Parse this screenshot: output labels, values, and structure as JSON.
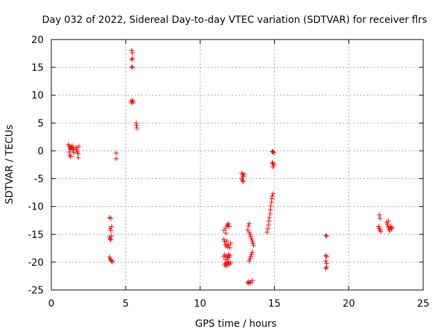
{
  "chart_data": {
    "type": "scatter",
    "title": "Day 032 of 2022, Sidereal Day-to-day VTEC variation (SDTVAR) for receiver flrs",
    "xlabel": "GPS time / hours",
    "ylabel": "SDTVAR / TECUs",
    "xlim": [
      0,
      25
    ],
    "ylim": [
      -25,
      20
    ],
    "xticks": [
      0,
      5,
      10,
      15,
      20,
      25
    ],
    "yticks": [
      -25,
      -20,
      -15,
      -10,
      -5,
      0,
      5,
      10,
      15,
      20
    ],
    "marker": "+",
    "color": "#ff0000",
    "grid": true,
    "series": [
      {
        "name": "SDTVAR",
        "points": [
          [
            1.15,
            1.1
          ],
          [
            1.2,
            0.8
          ],
          [
            1.25,
            0.5
          ],
          [
            1.3,
            0.3
          ],
          [
            1.35,
            0.7
          ],
          [
            1.2,
            -0.2
          ],
          [
            1.25,
            -0.8
          ],
          [
            1.3,
            -1.0
          ],
          [
            1.4,
            0.9
          ],
          [
            1.45,
            0.2
          ],
          [
            1.5,
            -0.3
          ],
          [
            1.5,
            0.4
          ],
          [
            1.65,
            0.6
          ],
          [
            1.7,
            0.2
          ],
          [
            1.75,
            -0.2
          ],
          [
            1.8,
            -0.5
          ],
          [
            1.85,
            0.8
          ],
          [
            1.8,
            -1.2
          ],
          [
            4.35,
            -0.4
          ],
          [
            4.35,
            -1.4
          ],
          [
            3.9,
            -12.0
          ],
          [
            4.0,
            -12.1
          ],
          [
            3.95,
            -13.9
          ],
          [
            4.0,
            -14.3
          ],
          [
            4.05,
            -13.6
          ],
          [
            3.9,
            -15.5
          ],
          [
            3.95,
            -15.8
          ],
          [
            4.05,
            -15.3
          ],
          [
            4.0,
            -16.0
          ],
          [
            3.9,
            -19.1
          ],
          [
            3.95,
            -19.4
          ],
          [
            4.0,
            -19.6
          ],
          [
            4.05,
            -19.8
          ],
          [
            4.1,
            -19.9
          ],
          [
            5.4,
            18.1
          ],
          [
            5.45,
            17.6
          ],
          [
            5.4,
            16.4
          ],
          [
            5.45,
            16.6
          ],
          [
            5.4,
            15.1
          ],
          [
            5.45,
            15.0
          ],
          [
            5.35,
            8.9
          ],
          [
            5.4,
            8.6
          ],
          [
            5.45,
            9.1
          ],
          [
            5.5,
            8.8
          ],
          [
            5.7,
            5.0
          ],
          [
            5.72,
            4.6
          ],
          [
            5.75,
            4.1
          ],
          [
            11.6,
            -14.3
          ],
          [
            11.7,
            -13.9
          ],
          [
            11.75,
            -14.8
          ],
          [
            11.8,
            -13.5
          ],
          [
            11.85,
            -13.3
          ],
          [
            11.9,
            -13.1
          ],
          [
            11.95,
            -13.6
          ],
          [
            11.6,
            -15.9
          ],
          [
            11.65,
            -16.3
          ],
          [
            11.7,
            -16.8
          ],
          [
            11.75,
            -17.1
          ],
          [
            11.8,
            -16.2
          ],
          [
            11.85,
            -17.3
          ],
          [
            11.9,
            -16.9
          ],
          [
            12.0,
            -17.4
          ],
          [
            12.05,
            -16.6
          ],
          [
            11.6,
            -19.0
          ],
          [
            11.65,
            -18.7
          ],
          [
            11.7,
            -19.5
          ],
          [
            11.8,
            -18.9
          ],
          [
            11.85,
            -19.2
          ],
          [
            11.9,
            -18.6
          ],
          [
            11.95,
            -19.1
          ],
          [
            12.0,
            -18.8
          ],
          [
            11.65,
            -20.5
          ],
          [
            11.7,
            -20.2
          ],
          [
            11.75,
            -20.7
          ],
          [
            11.8,
            -20.0
          ],
          [
            11.85,
            -20.4
          ],
          [
            11.9,
            -19.9
          ],
          [
            11.95,
            -20.3
          ],
          [
            12.05,
            -20.1
          ],
          [
            12.8,
            -4.0
          ],
          [
            12.85,
            -4.3
          ],
          [
            12.9,
            -4.6
          ],
          [
            12.8,
            -5.0
          ],
          [
            12.85,
            -5.3
          ],
          [
            12.9,
            -5.5
          ],
          [
            12.95,
            -4.2
          ],
          [
            13.2,
            -14.2
          ],
          [
            13.25,
            -13.5
          ],
          [
            13.3,
            -13.1
          ],
          [
            13.3,
            -14.6
          ],
          [
            13.35,
            -15.0
          ],
          [
            13.4,
            -15.4
          ],
          [
            13.45,
            -15.8
          ],
          [
            13.5,
            -16.2
          ],
          [
            13.55,
            -16.6
          ],
          [
            13.6,
            -17.0
          ],
          [
            13.3,
            -19.8
          ],
          [
            13.35,
            -19.4
          ],
          [
            13.4,
            -19.0
          ],
          [
            13.45,
            -18.6
          ],
          [
            13.5,
            -18.2
          ],
          [
            13.2,
            -23.6
          ],
          [
            13.25,
            -23.8
          ],
          [
            13.3,
            -23.5
          ],
          [
            13.4,
            -23.7
          ],
          [
            13.5,
            -23.3
          ],
          [
            14.5,
            -14.6
          ],
          [
            14.55,
            -14.0
          ],
          [
            14.6,
            -13.3
          ],
          [
            14.62,
            -12.6
          ],
          [
            14.65,
            -12.0
          ],
          [
            14.7,
            -11.3
          ],
          [
            14.72,
            -10.6
          ],
          [
            14.75,
            -9.9
          ],
          [
            14.8,
            -9.2
          ],
          [
            14.82,
            -8.6
          ],
          [
            14.85,
            -8.1
          ],
          [
            14.9,
            -7.7
          ],
          [
            14.85,
            -0.1
          ],
          [
            14.9,
            -0.2
          ],
          [
            14.95,
            -0.3
          ],
          [
            14.85,
            -2.1
          ],
          [
            14.9,
            -2.3
          ],
          [
            14.95,
            -2.5
          ],
          [
            14.9,
            -2.9
          ],
          [
            18.45,
            -15.2
          ],
          [
            18.5,
            -15.3
          ],
          [
            18.45,
            -18.8
          ],
          [
            18.5,
            -19.0
          ],
          [
            18.45,
            -19.8
          ],
          [
            18.5,
            -20.2
          ],
          [
            18.5,
            -20.9
          ],
          [
            18.45,
            -21.1
          ],
          [
            22.05,
            -11.5
          ],
          [
            22.1,
            -12.1
          ],
          [
            22.0,
            -13.6
          ],
          [
            22.05,
            -13.9
          ],
          [
            22.1,
            -14.2
          ],
          [
            22.15,
            -14.5
          ],
          [
            22.55,
            -12.9
          ],
          [
            22.6,
            -13.3
          ],
          [
            22.65,
            -13.7
          ],
          [
            22.7,
            -14.1
          ],
          [
            22.75,
            -14.4
          ],
          [
            22.8,
            -13.6
          ],
          [
            22.85,
            -13.9
          ],
          [
            22.9,
            -13.8
          ],
          [
            22.65,
            -12.6
          ]
        ]
      }
    ]
  }
}
